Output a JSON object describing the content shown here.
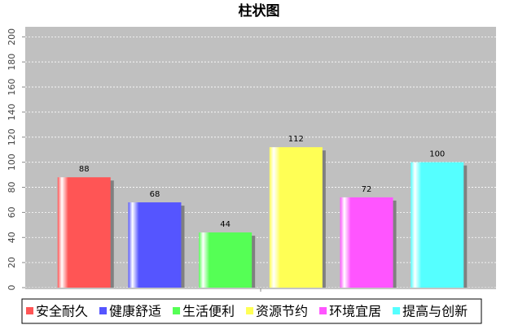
{
  "chart_data": {
    "type": "bar",
    "title": "柱状图",
    "categories": [
      null
    ],
    "series": [
      {
        "name": "安全耐久",
        "color": "#ff5555",
        "values": [
          88
        ]
      },
      {
        "name": "健康舒适",
        "color": "#5555ff",
        "values": [
          68
        ]
      },
      {
        "name": "生活便利",
        "color": "#55ff55",
        "values": [
          44
        ]
      },
      {
        "name": "资源节约",
        "color": "#ffff55",
        "values": [
          112
        ]
      },
      {
        "name": "环境宜居",
        "color": "#ff55ff",
        "values": [
          72
        ]
      },
      {
        "name": "提高与创新",
        "color": "#55ffff",
        "values": [
          100
        ]
      }
    ],
    "ylim": [
      0,
      208
    ],
    "yticks": [
      0,
      20,
      40,
      60,
      80,
      100,
      120,
      140,
      160,
      180,
      200
    ],
    "grid": true
  }
}
